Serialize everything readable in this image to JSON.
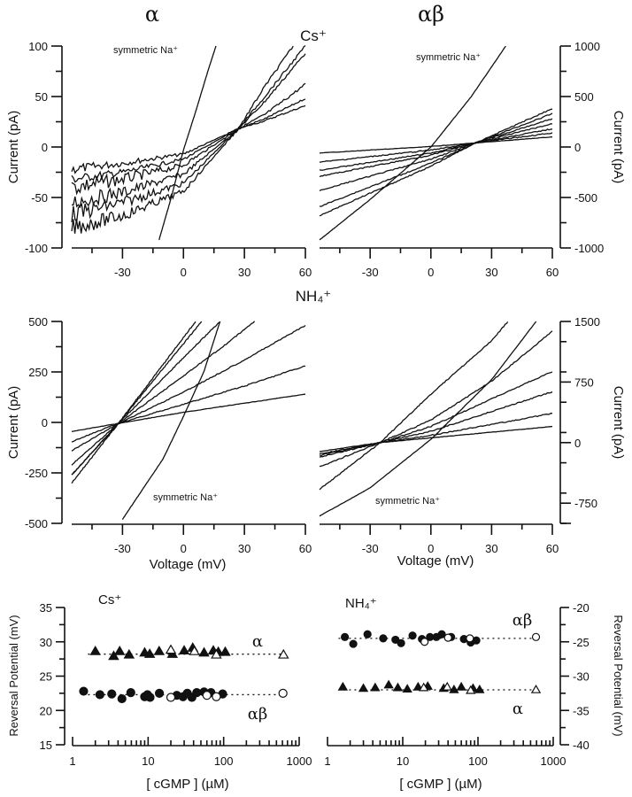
{
  "figure": {
    "column_headers": [
      "α",
      "αβ"
    ],
    "row_labels": [
      "Cs⁺",
      "NH₄⁺"
    ]
  },
  "chart_data": [
    {
      "id": "iv_alpha_cs",
      "type": "line",
      "title": "α — Cs⁺",
      "xlabel": "",
      "ylabel": "Current (pA)",
      "xlim": [
        -55,
        60
      ],
      "ylim": [
        -100,
        100
      ],
      "xticks": [
        -30,
        0,
        30,
        60
      ],
      "yticks": [
        -100,
        -50,
        0,
        50,
        100
      ],
      "y_axis_side": "left",
      "annotation": "symmetric Na⁺",
      "reversal_potential_mV": 27,
      "series": [
        {
          "name": "symmetric Na⁺",
          "x": [
            -12,
            -6,
            0,
            6,
            12,
            16
          ],
          "y": [
            -92,
            -50,
            -3,
            35,
            75,
            100
          ]
        },
        {
          "name": "Cs⁺ trace 1",
          "x": [
            -55,
            -30,
            0,
            27,
            40,
            60
          ],
          "y": [
            -22,
            -16,
            -7,
            18,
            26,
            41
          ]
        },
        {
          "name": "Cs⁺ trace 2",
          "x": [
            -55,
            -30,
            0,
            27,
            40,
            60
          ],
          "y": [
            -32,
            -25,
            -12,
            18,
            28,
            48
          ]
        },
        {
          "name": "Cs⁺ trace 3",
          "x": [
            -55,
            -30,
            0,
            27,
            40,
            60
          ],
          "y": [
            -40,
            -32,
            -18,
            18,
            32,
            62
          ]
        },
        {
          "name": "Cs⁺ trace 4",
          "x": [
            -55,
            -30,
            0,
            27,
            40,
            60
          ],
          "y": [
            -55,
            -45,
            -27,
            18,
            45,
            93
          ]
        },
        {
          "name": "Cs⁺ trace 5",
          "x": [
            -55,
            -30,
            0,
            27,
            40,
            60
          ],
          "y": [
            -67,
            -55,
            -36,
            18,
            50,
            100
          ]
        },
        {
          "name": "Cs⁺ trace 6",
          "x": [
            -55,
            -30,
            0,
            27,
            40,
            54
          ],
          "y": [
            -80,
            -68,
            -44,
            18,
            60,
            100
          ]
        }
      ]
    },
    {
      "id": "iv_alphabeta_cs",
      "type": "line",
      "title": "αβ — Cs⁺",
      "xlabel": "",
      "ylabel": "Current (pA)",
      "xlim": [
        -55,
        60
      ],
      "ylim": [
        -1000,
        1000
      ],
      "xticks": [
        -30,
        0,
        30,
        60
      ],
      "yticks": [
        -1000,
        -500,
        0,
        500,
        1000
      ],
      "y_axis_side": "right",
      "annotation": "symmetric Na⁺",
      "reversal_potential_mV": 22,
      "series": [
        {
          "name": "symmetric Na⁺",
          "x": [
            -55,
            -30,
            0,
            20,
            37
          ],
          "y": [
            -920,
            -520,
            0,
            500,
            1000
          ]
        },
        {
          "name": "Cs⁺ trace 1",
          "x": [
            -55,
            0,
            22,
            60
          ],
          "y": [
            -60,
            5,
            40,
            100
          ]
        },
        {
          "name": "Cs⁺ trace 2",
          "x": [
            -55,
            0,
            22,
            60
          ],
          "y": [
            -150,
            -30,
            40,
            140
          ]
        },
        {
          "name": "Cs⁺ trace 3",
          "x": [
            -55,
            0,
            22,
            60
          ],
          "y": [
            -230,
            -60,
            40,
            180
          ]
        },
        {
          "name": "Cs⁺ trace 4",
          "x": [
            -55,
            0,
            22,
            60
          ],
          "y": [
            -290,
            -80,
            40,
            230
          ]
        },
        {
          "name": "Cs⁺ trace 5",
          "x": [
            -55,
            0,
            22,
            60
          ],
          "y": [
            -430,
            -120,
            40,
            280
          ]
        },
        {
          "name": "Cs⁺ trace 6",
          "x": [
            -55,
            0,
            22,
            60
          ],
          "y": [
            -590,
            -160,
            40,
            330
          ]
        },
        {
          "name": "Cs⁺ trace 7",
          "x": [
            -55,
            0,
            22,
            60
          ],
          "y": [
            -680,
            -190,
            40,
            380
          ]
        }
      ]
    },
    {
      "id": "iv_alpha_nh4",
      "type": "line",
      "title": "α — NH₄⁺",
      "xlabel": "Voltage (mV)",
      "ylabel": "Current (pA)",
      "xlim": [
        -55,
        60
      ],
      "ylim": [
        -500,
        500
      ],
      "xticks": [
        -30,
        0,
        30,
        60
      ],
      "yticks": [
        -500,
        -250,
        0,
        250,
        500
      ],
      "y_axis_side": "left",
      "annotation": "symmetric Na⁺",
      "reversal_potential_mV": -32,
      "series": [
        {
          "name": "symmetric Na⁺",
          "x": [
            -30,
            -20,
            -10,
            0,
            10,
            18
          ],
          "y": [
            -480,
            -330,
            -180,
            30,
            250,
            500
          ]
        },
        {
          "name": "NH₄⁺ trace 1",
          "x": [
            -55,
            -32,
            0,
            60
          ],
          "y": [
            -45,
            -5,
            50,
            140
          ]
        },
        {
          "name": "NH₄⁺ trace 2",
          "x": [
            -55,
            -32,
            0,
            30,
            60
          ],
          "y": [
            -95,
            -5,
            90,
            180,
            280
          ]
        },
        {
          "name": "NH₄⁺ trace 3",
          "x": [
            -55,
            -32,
            0,
            30,
            60
          ],
          "y": [
            -140,
            -5,
            150,
            310,
            480
          ]
        },
        {
          "name": "NH₄⁺ trace 4",
          "x": [
            -55,
            -32,
            0,
            20,
            35
          ],
          "y": [
            -210,
            -5,
            230,
            380,
            500
          ]
        },
        {
          "name": "NH₄⁺ trace 5",
          "x": [
            -55,
            -32,
            0,
            18
          ],
          "y": [
            -260,
            -5,
            320,
            500
          ]
        },
        {
          "name": "NH₄⁺ trace 6",
          "x": [
            -55,
            -32,
            0,
            9
          ],
          "y": [
            -260,
            -5,
            390,
            500
          ]
        },
        {
          "name": "NH₄⁺ trace 7",
          "x": [
            -55,
            -32,
            0,
            6
          ],
          "y": [
            -300,
            -5,
            420,
            500
          ]
        }
      ]
    },
    {
      "id": "iv_alphabeta_nh4",
      "type": "line",
      "title": "αβ — NH₄⁺",
      "xlabel": "Voltage (mV)",
      "ylabel": "Current (pA)",
      "xlim": [
        -55,
        60
      ],
      "ylim": [
        -1000,
        1500
      ],
      "xticks": [
        -30,
        0,
        30,
        60
      ],
      "yticks": [
        -750,
        0,
        750,
        1500
      ],
      "y_axis_side": "right",
      "annotation": "symmetric Na⁺",
      "reversal_potential_mV": -25,
      "series": [
        {
          "name": "symmetric Na⁺",
          "x": [
            -55,
            -30,
            0,
            30,
            52
          ],
          "y": [
            -910,
            -560,
            40,
            780,
            1500
          ]
        },
        {
          "name": "NH₄⁺ trace 1",
          "x": [
            -55,
            -25,
            60
          ],
          "y": [
            -110,
            0,
            200
          ]
        },
        {
          "name": "NH₄⁺ trace 2",
          "x": [
            -55,
            -25,
            0,
            60
          ],
          "y": [
            -140,
            0,
            90,
            360
          ]
        },
        {
          "name": "NH₄⁺ trace 3",
          "x": [
            -55,
            -25,
            0,
            60
          ],
          "y": [
            -160,
            0,
            140,
            630
          ]
        },
        {
          "name": "NH₄⁺ trace 4",
          "x": [
            -55,
            -25,
            0,
            60
          ],
          "y": [
            -180,
            0,
            200,
            880
          ]
        },
        {
          "name": "NH₄⁺ trace 5",
          "x": [
            -55,
            -25,
            0,
            30,
            60
          ],
          "y": [
            -300,
            0,
            280,
            760,
            1380
          ]
        },
        {
          "name": "NH₄⁺ trace 6",
          "x": [
            -55,
            -25,
            0,
            30,
            38
          ],
          "y": [
            -580,
            0,
            600,
            1260,
            1500
          ]
        }
      ]
    },
    {
      "id": "erev_cs",
      "type": "scatter",
      "title": "Cs⁺",
      "xlabel": "[ cGMP ] (µM)",
      "ylabel": "Reversal Potential (mV)",
      "xscale": "log",
      "xlim": [
        1,
        1000
      ],
      "ylim": [
        15,
        35
      ],
      "xticks": [
        1,
        10,
        100,
        1000
      ],
      "yticks": [
        15,
        20,
        25,
        30,
        35
      ],
      "y_axis_side": "left",
      "series": [
        {
          "name": "α",
          "marker": "filled-triangle",
          "x": [
            2,
            3.5,
            4.2,
            5.6,
            9,
            10.5,
            14,
            21,
            30,
            39,
            55,
            73,
            85,
            105
          ],
          "y": [
            28.6,
            27.9,
            28.6,
            28.1,
            28.4,
            28.2,
            28.6,
            28.2,
            28.7,
            29.1,
            28.4,
            28.7,
            28.5,
            28.5
          ]
        },
        {
          "name": "α (open)",
          "marker": "open-triangle",
          "x": [
            20,
            41,
            80,
            620
          ],
          "y": [
            28.8,
            28.6,
            28.1,
            28.1
          ]
        },
        {
          "name": "αβ",
          "marker": "filled-circle",
          "x": [
            1.4,
            2.3,
            3.3,
            4.5,
            5.9,
            9,
            9.8,
            10.6,
            14.1,
            24,
            29,
            33,
            38,
            44,
            55,
            68,
            97
          ],
          "y": [
            22.8,
            22.3,
            22.4,
            21.7,
            22.6,
            22.0,
            22.3,
            21.9,
            22.5,
            22.2,
            22.0,
            22.5,
            21.9,
            22.6,
            22.7,
            22.6,
            22.4
          ]
        },
        {
          "name": "αβ (open)",
          "marker": "open-circle",
          "x": [
            20,
            60,
            80,
            610
          ],
          "y": [
            21.9,
            22.2,
            22.0,
            22.5
          ]
        }
      ],
      "fit_lines": [
        {
          "name": "α mean",
          "y": 28.2,
          "x_range": [
            1.6,
            620
          ]
        },
        {
          "name": "αβ mean",
          "y": 22.3,
          "x_range": [
            1.6,
            620
          ]
        }
      ],
      "annotations": [
        "α",
        "αβ"
      ]
    },
    {
      "id": "erev_nh4",
      "type": "scatter",
      "title": "NH₄⁺",
      "xlabel": "[ cGMP ] (µM)",
      "ylabel": "Reversal Potential (mV)",
      "xscale": "log",
      "xlim": [
        1,
        1000
      ],
      "ylim": [
        -40,
        -20
      ],
      "xticks": [
        1,
        10,
        100,
        1000
      ],
      "yticks": [
        -40,
        -35,
        -30,
        -25,
        -20
      ],
      "y_axis_side": "right",
      "series": [
        {
          "name": "αβ",
          "marker": "filled-circle",
          "x": [
            1.7,
            2.2,
            3.4,
            5.5,
            8,
            9.5,
            13.5,
            18,
            23,
            28,
            33,
            44,
            65,
            80,
            95
          ],
          "y": [
            -24.3,
            -25.3,
            -23.9,
            -24.5,
            -24.7,
            -25.2,
            -24.1,
            -24.6,
            -24.3,
            -24.3,
            -23.9,
            -24.3,
            -24.6,
            -25.1,
            -24.8
          ]
        },
        {
          "name": "αβ (open)",
          "marker": "open-circle",
          "x": [
            19.5,
            40,
            78,
            590
          ],
          "y": [
            -25.0,
            -24.4,
            -24.5,
            -24.3
          ]
        },
        {
          "name": "α",
          "marker": "filled-triangle",
          "x": [
            1.6,
            3,
            4.3,
            6.5,
            8.6,
            11.5,
            16,
            21.5,
            35,
            48,
            60,
            86,
            105
          ],
          "y": [
            -31.6,
            -31.8,
            -31.7,
            -31.3,
            -31.7,
            -31.9,
            -31.6,
            -31.5,
            -31.8,
            -32.0,
            -31.6,
            -31.8,
            -32.0
          ]
        },
        {
          "name": "α (open)",
          "marker": "open-triangle",
          "x": [
            19,
            39,
            80,
            590
          ],
          "y": [
            -31.7,
            -31.6,
            -32.1,
            -32.0
          ]
        }
      ],
      "fit_lines": [
        {
          "name": "αβ mean",
          "y": -24.5,
          "x_range": [
            1.4,
            590
          ]
        },
        {
          "name": "α mean",
          "y": -32.0,
          "x_range": [
            1.4,
            590
          ]
        }
      ],
      "annotations": [
        "αβ",
        "α"
      ]
    }
  ]
}
